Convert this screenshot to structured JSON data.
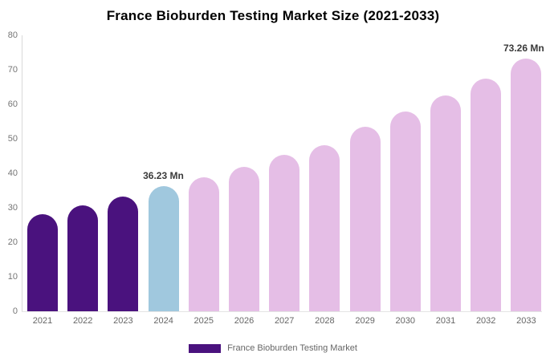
{
  "title": "France Bioburden Testing Market Size (2021-2033)",
  "chart_data": {
    "type": "bar",
    "title": "France Bioburden Testing Market Size (2021-2033)",
    "xlabel": "",
    "ylabel": "",
    "unit": "Mn",
    "categories": [
      "2021",
      "2022",
      "2023",
      "2024",
      "2025",
      "2026",
      "2027",
      "2028",
      "2029",
      "2030",
      "2031",
      "2032",
      "2033"
    ],
    "values": [
      28.2,
      30.6,
      33.2,
      36.23,
      38.9,
      41.8,
      45.4,
      48.2,
      53.4,
      57.8,
      62.6,
      67.4,
      73.26
    ],
    "bar_color_keys": [
      "historical",
      "historical",
      "historical",
      "current",
      "forecast",
      "forecast",
      "forecast",
      "forecast",
      "forecast",
      "forecast",
      "forecast",
      "forecast",
      "forecast"
    ],
    "ylim": [
      0,
      80
    ],
    "yticks": [
      0,
      10,
      20,
      30,
      40,
      50,
      60,
      70,
      80
    ],
    "grid": false,
    "annotations": [
      {
        "index": 3,
        "text": "36.23 Mn"
      },
      {
        "index": 12,
        "text": "73.26 Mn"
      }
    ],
    "legend": {
      "position": "bottom-center",
      "items": [
        {
          "label": "France Bioburden Testing Market",
          "color_key": "historical"
        }
      ]
    }
  },
  "colors": {
    "historical": "#4a127e",
    "current": "#a0c8de",
    "forecast": "#e5bee6",
    "title_text": "#000000",
    "axis_line": "#d9d9d9",
    "ytick_text": "#757575",
    "xtick_text": "#666666",
    "annotation_text": "#3a3a3a",
    "legend_text": "#666666",
    "background": "#ffffff"
  }
}
